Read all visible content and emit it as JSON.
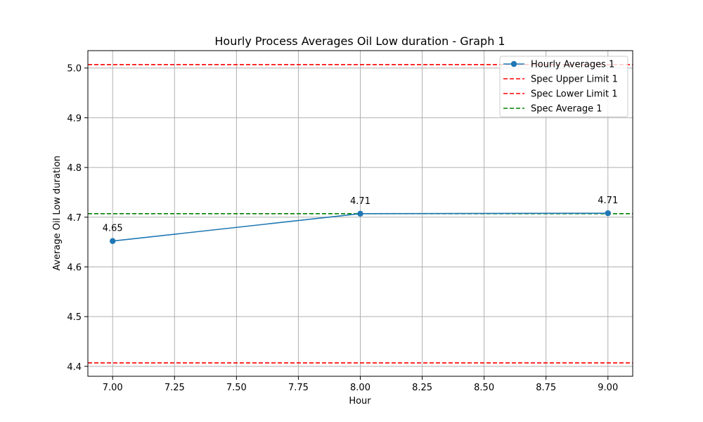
{
  "chart_data": {
    "type": "line",
    "title": "Hourly Process Averages Oil Low duration - Graph 1",
    "xlabel": "Hour",
    "ylabel": "Average Oil Low duration",
    "xlim": [
      6.9,
      9.1
    ],
    "ylim": [
      4.38,
      5.035
    ],
    "x_ticks": [
      "7.00",
      "7.25",
      "7.50",
      "7.75",
      "8.00",
      "8.25",
      "8.50",
      "8.75",
      "9.00"
    ],
    "y_ticks": [
      "4.4",
      "4.5",
      "4.6",
      "4.7",
      "4.8",
      "4.9",
      "5.0"
    ],
    "grid": true,
    "legend_position": "top-right",
    "series": [
      {
        "name": "Hourly Averages 1",
        "color": "#1f77b4",
        "marker": "circle",
        "x": [
          7.0,
          8.0,
          9.0
        ],
        "y": [
          4.652,
          4.707,
          4.708
        ],
        "labels": [
          "4.65",
          "4.71",
          "4.71"
        ]
      }
    ],
    "reference_lines": [
      {
        "name": "Spec Upper Limit 1",
        "y": 5.007,
        "color": "#ff0000",
        "style": "dashed"
      },
      {
        "name": "Spec Lower Limit 1",
        "y": 4.407,
        "color": "#ff0000",
        "style": "dashed"
      },
      {
        "name": "Spec Average 1",
        "y": 4.707,
        "color": "#008000",
        "style": "dashed"
      }
    ]
  }
}
